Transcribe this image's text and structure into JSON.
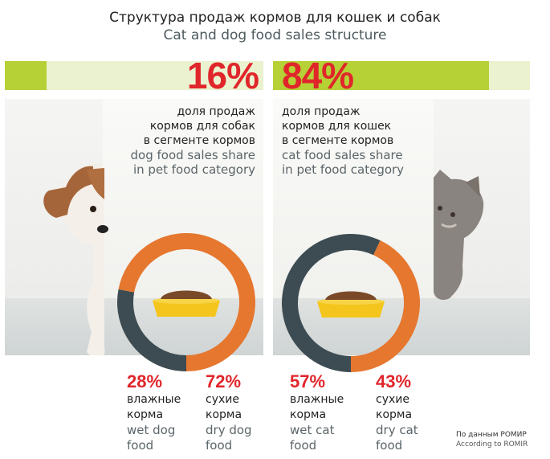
{
  "title": {
    "ru": "Структура продаж кормов для кошек и собак",
    "en": "Cat and dog food sales structure"
  },
  "colors": {
    "accent_red": "#e0262b",
    "bar_green": "#b5d136",
    "bar_light": "#eaf2cf",
    "wet": "#3d4c52",
    "dry": "#e5772f"
  },
  "chart_data": [
    {
      "type": "bar",
      "title": "Cat and dog food sales structure",
      "categories": [
        "dog food",
        "cat food"
      ],
      "values": [
        16,
        84
      ],
      "labels": [
        "16%",
        "84%"
      ],
      "unit": "%"
    },
    {
      "type": "pie",
      "title": "dog food",
      "categories": [
        "wet dog food",
        "dry dog food"
      ],
      "values": [
        28,
        72
      ]
    },
    {
      "type": "pie",
      "title": "cat food",
      "categories": [
        "wet cat food",
        "dry cat food"
      ],
      "values": [
        57,
        43
      ]
    }
  ],
  "dog": {
    "share_label": "16%",
    "share_value": 16,
    "desc_ru": [
      "доля продаж",
      "кормов для собак",
      "в сегменте кормов"
    ],
    "desc_en": [
      "dog food sales share",
      "in pet food category"
    ],
    "wet": {
      "pct": "28%",
      "value": 28,
      "ru": [
        "влажные",
        "корма"
      ],
      "en": [
        "wet dog",
        "food"
      ]
    },
    "dry": {
      "pct": "72%",
      "value": 72,
      "ru": [
        "сухие",
        "корма"
      ],
      "en": [
        "dry dog",
        "food"
      ]
    }
  },
  "cat": {
    "share_label": "84%",
    "share_value": 84,
    "desc_ru": [
      "доля продаж",
      "кормов для кошек",
      "в сегменте кормов"
    ],
    "desc_en": [
      "cat food sales share",
      "in pet food category"
    ],
    "wet": {
      "pct": "57%",
      "value": 57,
      "ru": [
        "влажные",
        "корма"
      ],
      "en": [
        "wet cat",
        "food"
      ]
    },
    "dry": {
      "pct": "43%",
      "value": 43,
      "ru": [
        "сухие",
        "корма"
      ],
      "en": [
        "dry cat",
        "food"
      ]
    }
  },
  "source": {
    "ru": "По данным РОМИР",
    "en": "According to ROMIR"
  }
}
